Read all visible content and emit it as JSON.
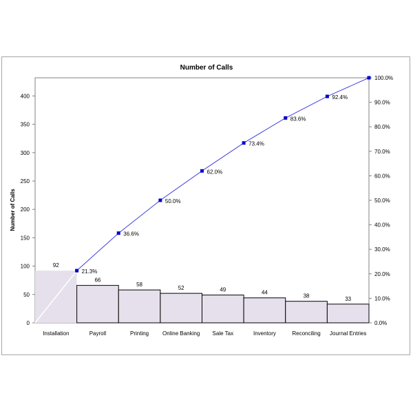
{
  "chart_data": {
    "type": "bar",
    "title": "Number of Calls",
    "xlabel": "",
    "ylabel": "Number of Calls",
    "y2label": "",
    "categories": [
      "Installation",
      "Payroll",
      "Printing",
      "Online Banking",
      "Sale Tax",
      "Inventory",
      "Reconciling",
      "Journal Entries"
    ],
    "values": [
      92,
      66,
      58,
      52,
      49,
      44,
      38,
      33
    ],
    "cumulative_percent": [
      21.3,
      36.6,
      50.0,
      62.0,
      73.4,
      83.6,
      92.4,
      100.0
    ],
    "cumulative_labels": [
      "21.3%",
      "36.6%",
      "50.0%",
      "62.0%",
      "73.4%",
      "83.6%",
      "92.4%",
      "100.0%"
    ],
    "ylim": [
      0,
      432
    ],
    "yticks": [
      0,
      50,
      100,
      150,
      200,
      250,
      300,
      350,
      400
    ],
    "y2lim": [
      0,
      100
    ],
    "y2ticks": [
      "0.0%",
      "10.0%",
      "20.0%",
      "30.0%",
      "40.0%",
      "50.0%",
      "60.0%",
      "70.0%",
      "80.0%",
      "90.0%",
      "100.0%"
    ],
    "grid": false,
    "legend": "none",
    "colors": {
      "bar_fill": "#e6e0ec",
      "bar_stroke": "#000000",
      "line": "#3f3fdf",
      "marker": "#0000cc"
    }
  }
}
